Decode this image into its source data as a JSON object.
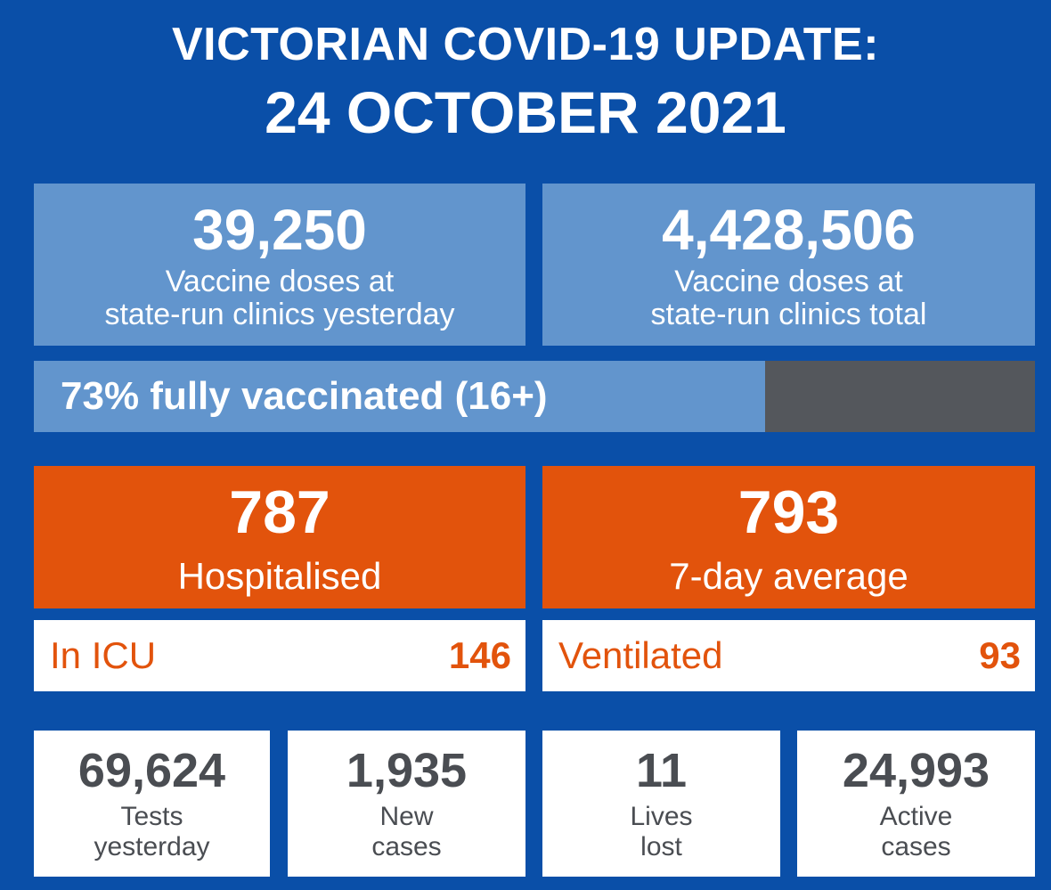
{
  "header": {
    "line1": "VICTORIAN COVID-19 UPDATE:",
    "line2": "24 OCTOBER 2021"
  },
  "vaccine": {
    "yesterday": {
      "value": "39,250",
      "label_line1": "Vaccine doses at",
      "label_line2": "state-run clinics yesterday"
    },
    "total": {
      "value": "4,428,506",
      "label_line1": "Vaccine doses at",
      "label_line2": "state-run clinics total"
    }
  },
  "progress": {
    "label": "73% fully vaccinated (16+)",
    "percent": 73
  },
  "hospital": {
    "hospitalised": {
      "value": "787",
      "label": "Hospitalised"
    },
    "average": {
      "value": "793",
      "label": "7-day average"
    },
    "icu": {
      "label": "In ICU",
      "value": "146"
    },
    "ventilated": {
      "label": "Ventilated",
      "value": "93"
    }
  },
  "stats": [
    {
      "value": "69,624",
      "label_line1": "Tests",
      "label_line2": "yesterday"
    },
    {
      "value": "1,935",
      "label_line1": "New",
      "label_line2": "cases"
    },
    {
      "value": "11",
      "label_line1": "Lives",
      "label_line2": "lost"
    },
    {
      "value": "24,993",
      "label_line1": "Active",
      "label_line2": "cases"
    }
  ],
  "colors": {
    "background": "#0a4fa8",
    "blue_box": "#6295cd",
    "orange": "#e2530c",
    "progress_track": "#54575c",
    "stat_text": "#4a4d52"
  }
}
